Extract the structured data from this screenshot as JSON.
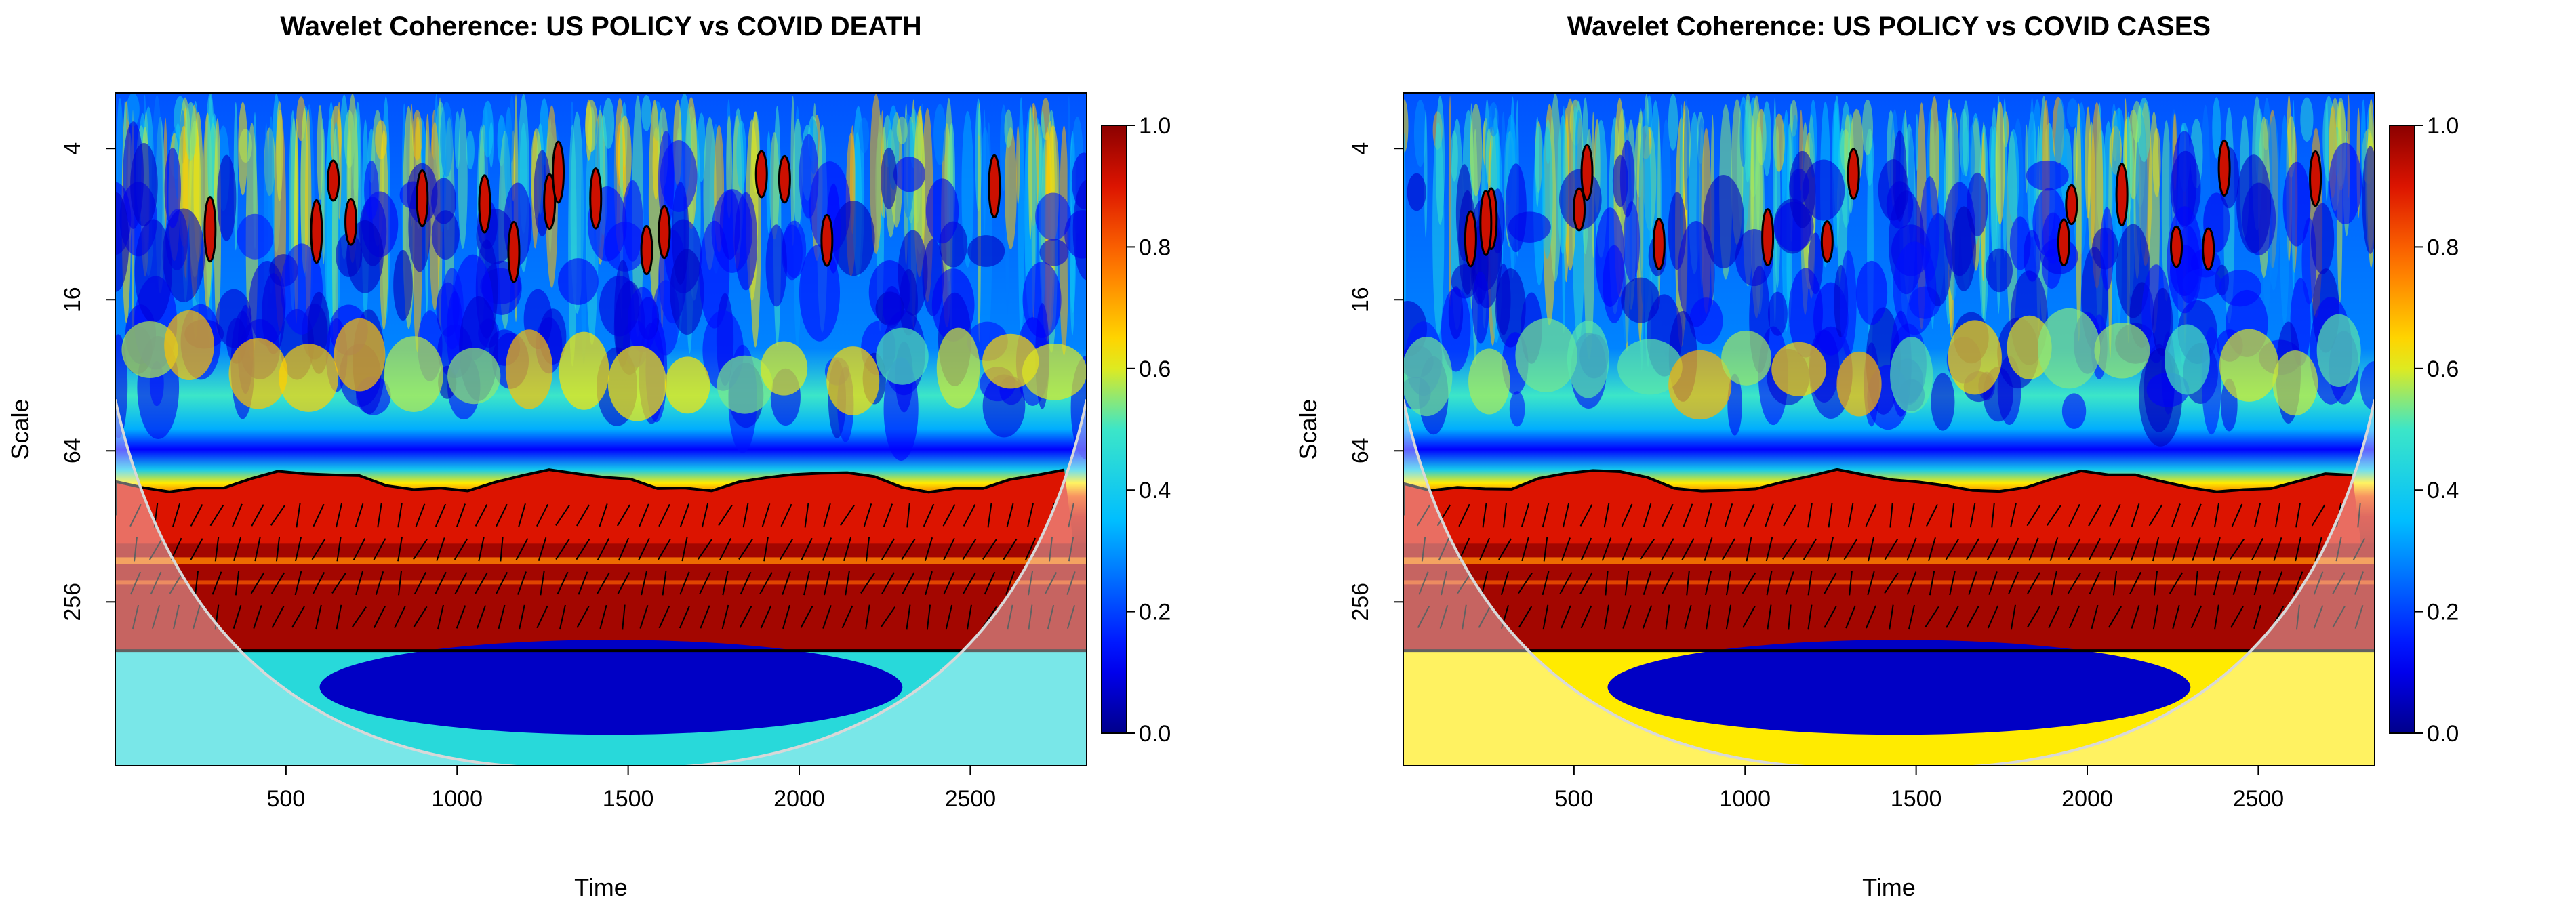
{
  "chart_data": [
    {
      "type": "heatmap",
      "title": "Wavelet Coherence: US POLICY vs COVID DEATH",
      "xlabel": "Time",
      "ylabel": "Scale",
      "xlim": [
        1,
        2840
      ],
      "x_ticks": [
        "500",
        "1000",
        "1500",
        "2000",
        "2500"
      ],
      "x_tick_values": [
        500,
        1000,
        1500,
        2000,
        2500
      ],
      "y_ticks": [
        "4",
        "16",
        "64",
        "256"
      ],
      "y_tick_values": [
        4,
        16,
        64,
        256
      ],
      "colorbar_ticks": [
        "0.0",
        "0.2",
        "0.4",
        "0.6",
        "0.8",
        "1.0"
      ],
      "colorbar_values": [
        0.0,
        0.2,
        0.4,
        0.6,
        0.8,
        1.0
      ],
      "high_coherence_band_scale": [
        96,
        400
      ],
      "colors": {
        "low": "#00008b",
        "mid": "#00bfff",
        "high": "#8b0000"
      }
    },
    {
      "type": "heatmap",
      "title": "Wavelet Coherence: US POLICY vs COVID CASES",
      "xlabel": "Time",
      "ylabel": "Scale",
      "xlim": [
        1,
        2840
      ],
      "x_ticks": [
        "500",
        "1000",
        "1500",
        "2000",
        "2500"
      ],
      "x_tick_values": [
        500,
        1000,
        1500,
        2000,
        2500
      ],
      "y_ticks": [
        "4",
        "16",
        "64",
        "256"
      ],
      "y_tick_values": [
        4,
        16,
        64,
        256
      ],
      "colorbar_ticks": [
        "0.0",
        "0.2",
        "0.4",
        "0.6",
        "0.8",
        "1.0"
      ],
      "colorbar_values": [
        0.0,
        0.2,
        0.4,
        0.6,
        0.8,
        1.0
      ],
      "high_coherence_band_scale": [
        96,
        400
      ],
      "colors": {
        "low": "#00008b",
        "mid": "#00bfff",
        "high": "#8b0000"
      }
    }
  ]
}
